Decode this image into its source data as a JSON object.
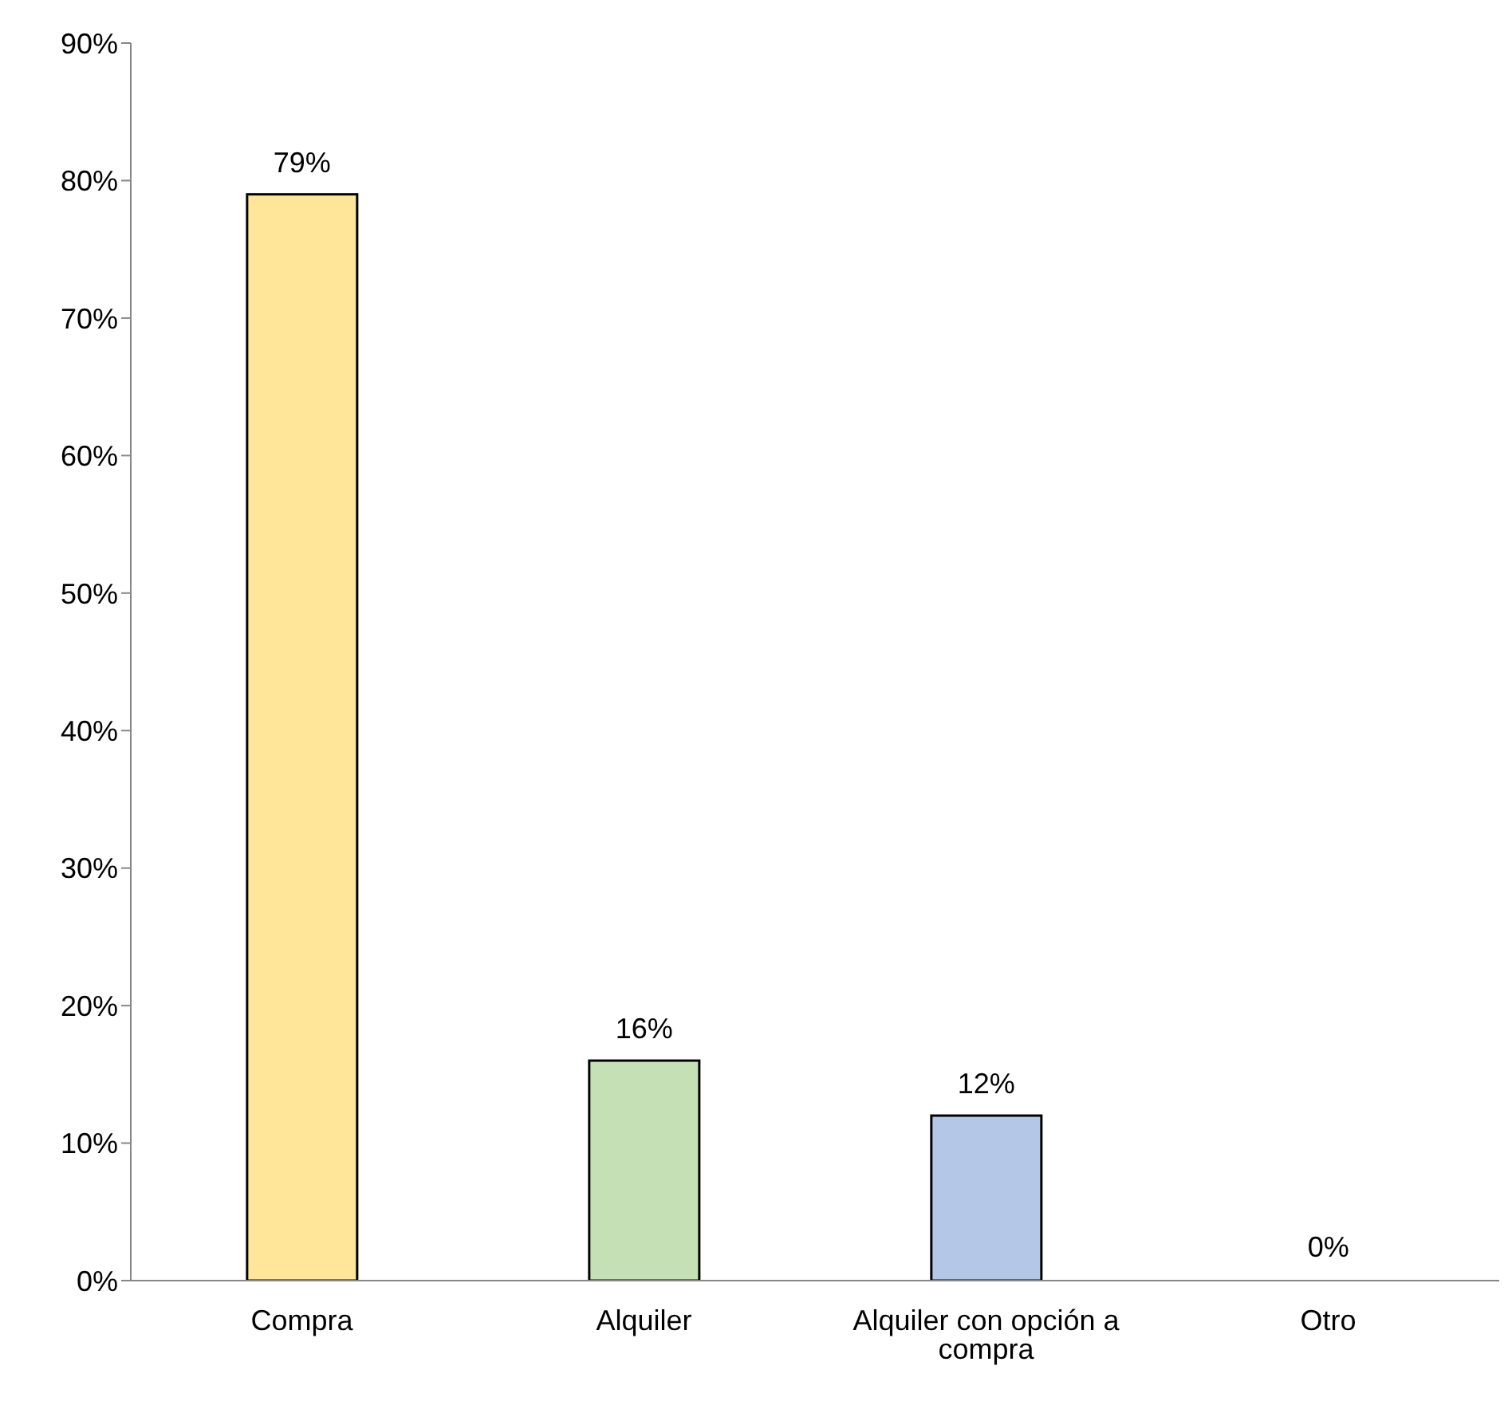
{
  "chart_data": {
    "type": "bar",
    "categories": [
      "Compra",
      "Alquiler",
      "Alquiler con opción a compra",
      "Otro"
    ],
    "values": [
      79,
      16,
      12,
      0
    ],
    "colors": [
      "#ffe699",
      "#c5e0b4",
      "#b4c7e7",
      "#f4b183"
    ],
    "value_labels": [
      "79%",
      "16%",
      "12%",
      "0%"
    ],
    "ylim": [
      0,
      90
    ],
    "yticks": [
      {
        "value": 0,
        "label": "0%"
      },
      {
        "value": 10,
        "label": "10%"
      },
      {
        "value": 20,
        "label": "20%"
      },
      {
        "value": 30,
        "label": "30%"
      },
      {
        "value": 40,
        "label": "40%"
      },
      {
        "value": 50,
        "label": "50%"
      },
      {
        "value": 60,
        "label": "60%"
      },
      {
        "value": 70,
        "label": "70%"
      },
      {
        "value": 80,
        "label": "80%"
      },
      {
        "value": 90,
        "label": "90%"
      }
    ],
    "grid": false,
    "legend": false
  }
}
